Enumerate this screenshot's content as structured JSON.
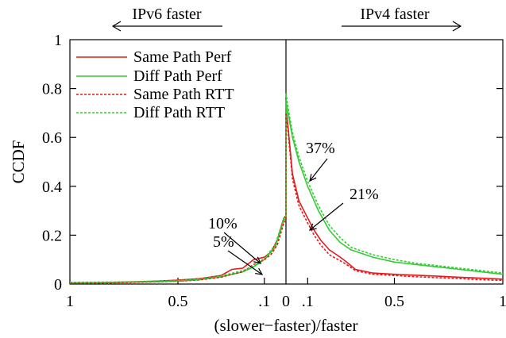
{
  "chart_data": {
    "type": "line",
    "title": "",
    "xlabel": "(slower−faster)/faster",
    "ylabel": "CCDF",
    "ylim": [
      0,
      1
    ],
    "yticks": [
      0,
      0.2,
      0.4,
      0.6,
      0.8,
      1
    ],
    "ytick_labels": [
      "0",
      "0.2",
      "0.4",
      "0.6",
      "0.8",
      "1"
    ],
    "xtick_labels": [
      {
        "label": "1",
        "x": -1
      },
      {
        "label": "0.5",
        "x": -0.5
      },
      {
        "label": ".1",
        "x": -0.1
      },
      {
        "label": "0",
        "x": 0
      },
      {
        "label": ".1",
        "x": 0.1
      },
      {
        "label": "0.5",
        "x": 0.5
      },
      {
        "label": "1",
        "x": 1
      }
    ],
    "xlim": [
      -1,
      1
    ],
    "x_scale": "split: left half = IPv6 faster, right half = IPv4 faster; value = (slower-faster)/faster",
    "grid": false,
    "legend_position": "top-left",
    "directions": {
      "left": "IPv6 faster",
      "right": "IPv4 faster"
    },
    "annotations": [
      {
        "text": "37%",
        "x": 0.1,
        "y": 0.44
      },
      {
        "text": "21%",
        "x": 0.1,
        "y": 0.24
      },
      {
        "text": "10%",
        "x": -0.12,
        "y": 0.09
      },
      {
        "text": "5%",
        "x": -0.14,
        "y": 0.07
      }
    ],
    "series": [
      {
        "name": "Same Path Perf",
        "color": "#e41a1c",
        "dash": "solid",
        "points": [
          [
            -1,
            0.005
          ],
          [
            -0.9,
            0.006
          ],
          [
            -0.8,
            0.007
          ],
          [
            -0.7,
            0.009
          ],
          [
            -0.6,
            0.012
          ],
          [
            -0.5,
            0.016
          ],
          [
            -0.4,
            0.022
          ],
          [
            -0.3,
            0.035
          ],
          [
            -0.25,
            0.06
          ],
          [
            -0.2,
            0.065
          ],
          [
            -0.15,
            0.1
          ],
          [
            -0.1,
            0.11
          ],
          [
            -0.07,
            0.13
          ],
          [
            -0.04,
            0.18
          ],
          [
            -0.01,
            0.27
          ],
          [
            0,
            0.28
          ],
          [
            0,
            0.72
          ],
          [
            0.01,
            0.64
          ],
          [
            0.03,
            0.45
          ],
          [
            0.06,
            0.34
          ],
          [
            0.1,
            0.27
          ],
          [
            0.13,
            0.22
          ],
          [
            0.16,
            0.18
          ],
          [
            0.2,
            0.14
          ],
          [
            0.25,
            0.11
          ],
          [
            0.28,
            0.09
          ],
          [
            0.32,
            0.06
          ],
          [
            0.4,
            0.045
          ],
          [
            0.5,
            0.04
          ],
          [
            0.6,
            0.036
          ],
          [
            0.7,
            0.032
          ],
          [
            0.8,
            0.028
          ],
          [
            0.9,
            0.024
          ],
          [
            1,
            0.02
          ]
        ]
      },
      {
        "name": "Diff Path Perf",
        "color": "#33cc33",
        "dash": "solid",
        "points": [
          [
            -1,
            0.005
          ],
          [
            -0.8,
            0.006
          ],
          [
            -0.6,
            0.009
          ],
          [
            -0.5,
            0.012
          ],
          [
            -0.4,
            0.018
          ],
          [
            -0.3,
            0.03
          ],
          [
            -0.2,
            0.05
          ],
          [
            -0.15,
            0.07
          ],
          [
            -0.1,
            0.1
          ],
          [
            -0.05,
            0.15
          ],
          [
            -0.01,
            0.26
          ],
          [
            0,
            0.27
          ],
          [
            0,
            0.75
          ],
          [
            0.01,
            0.7
          ],
          [
            0.03,
            0.6
          ],
          [
            0.06,
            0.5
          ],
          [
            0.1,
            0.4
          ],
          [
            0.15,
            0.3
          ],
          [
            0.2,
            0.22
          ],
          [
            0.25,
            0.17
          ],
          [
            0.3,
            0.14
          ],
          [
            0.4,
            0.11
          ],
          [
            0.5,
            0.09
          ],
          [
            0.6,
            0.08
          ],
          [
            0.7,
            0.07
          ],
          [
            0.8,
            0.06
          ],
          [
            0.9,
            0.05
          ],
          [
            1,
            0.04
          ]
        ]
      },
      {
        "name": "Same Path RTT",
        "color": "#e41a1c",
        "dash": "dotted",
        "points": [
          [
            -1,
            0.003
          ],
          [
            -0.9,
            0.004
          ],
          [
            -0.8,
            0.005
          ],
          [
            -0.7,
            0.007
          ],
          [
            -0.6,
            0.009
          ],
          [
            -0.5,
            0.012
          ],
          [
            -0.4,
            0.017
          ],
          [
            -0.3,
            0.028
          ],
          [
            -0.25,
            0.04
          ],
          [
            -0.2,
            0.05
          ],
          [
            -0.15,
            0.08
          ],
          [
            -0.1,
            0.1
          ],
          [
            -0.07,
            0.12
          ],
          [
            -0.04,
            0.16
          ],
          [
            -0.01,
            0.25
          ],
          [
            0,
            0.26
          ],
          [
            0,
            0.7
          ],
          [
            0.01,
            0.62
          ],
          [
            0.03,
            0.43
          ],
          [
            0.06,
            0.32
          ],
          [
            0.1,
            0.25
          ],
          [
            0.13,
            0.2
          ],
          [
            0.16,
            0.16
          ],
          [
            0.2,
            0.12
          ],
          [
            0.25,
            0.095
          ],
          [
            0.28,
            0.08
          ],
          [
            0.32,
            0.055
          ],
          [
            0.4,
            0.04
          ],
          [
            0.5,
            0.035
          ],
          [
            0.6,
            0.03
          ],
          [
            0.7,
            0.026
          ],
          [
            0.8,
            0.022
          ],
          [
            0.9,
            0.018
          ],
          [
            1,
            0.015
          ]
        ]
      },
      {
        "name": "Diff Path RTT",
        "color": "#33cc33",
        "dash": "dotted",
        "points": [
          [
            -1,
            0.007
          ],
          [
            -0.8,
            0.008
          ],
          [
            -0.6,
            0.011
          ],
          [
            -0.5,
            0.014
          ],
          [
            -0.4,
            0.02
          ],
          [
            -0.3,
            0.033
          ],
          [
            -0.2,
            0.055
          ],
          [
            -0.15,
            0.075
          ],
          [
            -0.1,
            0.105
          ],
          [
            -0.05,
            0.16
          ],
          [
            -0.01,
            0.27
          ],
          [
            0,
            0.28
          ],
          [
            0,
            0.78
          ],
          [
            0.01,
            0.72
          ],
          [
            0.03,
            0.62
          ],
          [
            0.06,
            0.52
          ],
          [
            0.1,
            0.42
          ],
          [
            0.15,
            0.32
          ],
          [
            0.2,
            0.24
          ],
          [
            0.25,
            0.19
          ],
          [
            0.3,
            0.15
          ],
          [
            0.4,
            0.12
          ],
          [
            0.5,
            0.1
          ],
          [
            0.6,
            0.085
          ],
          [
            0.7,
            0.075
          ],
          [
            0.8,
            0.065
          ],
          [
            0.9,
            0.055
          ],
          [
            1,
            0.045
          ]
        ]
      }
    ]
  }
}
